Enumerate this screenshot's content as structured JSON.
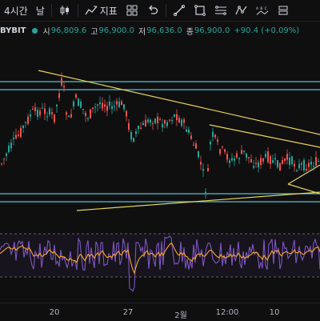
{
  "toolbar": {
    "interval_label": "4시간",
    "day_label": "날",
    "indicators_label": "지표"
  },
  "symbol": {
    "exchange": "BYBIT",
    "open_label": "시",
    "open_value": "96,809.6",
    "high_label": "고",
    "high_value": "96,900.0",
    "low_label": "저",
    "low_value": "96,636.0",
    "close_label": "종",
    "close_value": "96,900.0",
    "change": "+90.4 (+0.09%)"
  },
  "x_axis": {
    "labels": [
      "20",
      "27",
      "2월",
      "12:00",
      "10"
    ]
  },
  "colors": {
    "up": "#26a69a",
    "down": "#ef5350",
    "trendline": "#e8d55a",
    "horizontal": "#4ec4d6",
    "rsi": "#7e57c2",
    "rsi_ma": "#ffa726"
  },
  "icons": [
    "candles-icon",
    "bar-style-icon",
    "indicators-icon",
    "layout-icon",
    "undo-icon",
    "line-tool-icon",
    "rectangle-tool-icon",
    "fib-tool-icon",
    "pattern-tool-icon",
    "abc-tool-icon",
    "long-position-icon"
  ]
}
